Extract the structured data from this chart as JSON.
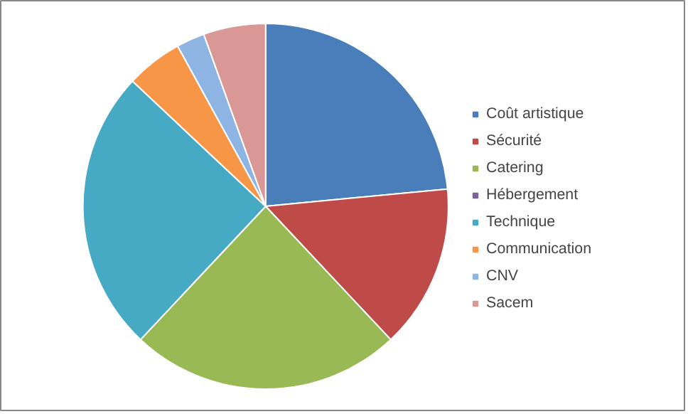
{
  "chart_data": {
    "type": "pie",
    "categories": [
      "Coût artistique",
      "Sécurité",
      "Catering",
      "Hébergement",
      "Technique",
      "Communication",
      "CNV",
      "Sacem"
    ],
    "values": [
      23.5,
      14.5,
      24,
      0,
      25,
      5,
      2.5,
      5.5
    ],
    "colors": [
      "#4a7ebb",
      "#be4b48",
      "#98b954",
      "#7d60a0",
      "#46aac5",
      "#f79646",
      "#8eb4e3",
      "#d99795"
    ],
    "legend": "right"
  }
}
